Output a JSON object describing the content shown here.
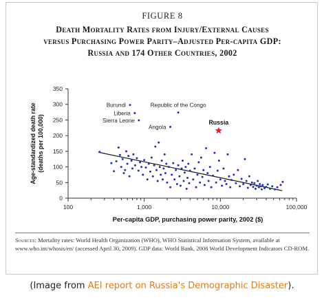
{
  "figure": {
    "label": "Figure 8",
    "title_lines": [
      "Death Mortality Rates from Injury/External Causes",
      "versus Purchasing Power Parity–Adjusted Per-capita GDP:",
      "Russia and 174 Other Countries, 2002"
    ],
    "sources": {
      "label": "Sources:",
      "text": " Mortality rates: World Health Organization (WHO), WHO Statistical Information System, available at www.who.int/whosis/en/ (accessed April 30, 2009). GDP data: World Bank, 2008 World Development Indicators CD-ROM."
    }
  },
  "caption": {
    "before": "(Image from ",
    "link": "AEI report on Russia's Demographic Disaster",
    "after": ")."
  },
  "colors": {
    "points": "#2233aa",
    "russia": "#e02020",
    "trend": "#222222",
    "link": "#e07b1a"
  },
  "chart_data": {
    "type": "scatter",
    "x_scale": "log",
    "xlabel": "Per-capita GDP, purchasing power parity, 2002 ($)",
    "ylabel_lines": [
      "Age-standardized death rate",
      "(deaths per 100,000)"
    ],
    "xlim": [
      100,
      100000
    ],
    "ylim": [
      0,
      350
    ],
    "x_ticks": [
      {
        "value": 100,
        "label": "100"
      },
      {
        "value": 1000,
        "label": "1,000"
      },
      {
        "value": 10000,
        "label": "10,000"
      },
      {
        "value": 100000,
        "label": "100,000"
      }
    ],
    "y_ticks": [
      0,
      50,
      100,
      150,
      200,
      250,
      300,
      350
    ],
    "labeled_points": [
      {
        "name": "Burundi",
        "x": 650,
        "y": 298
      },
      {
        "name": "Liberia",
        "x": 750,
        "y": 272
      },
      {
        "name": "Sierra Leone",
        "x": 850,
        "y": 249
      },
      {
        "name": "Republic of the Congo",
        "x": 2800,
        "y": 274
      },
      {
        "name": "Angola",
        "x": 2200,
        "y": 228
      }
    ],
    "highlight": {
      "name": "Russia",
      "x": 9500,
      "y": 216
    },
    "trendline": [
      [
        250,
        147
      ],
      [
        65000,
        24
      ]
    ],
    "points": [
      [
        260,
        148
      ],
      [
        370,
        112
      ],
      [
        400,
        86
      ],
      [
        430,
        118
      ],
      [
        460,
        162
      ],
      [
        480,
        138
      ],
      [
        500,
        100
      ],
      [
        520,
        125
      ],
      [
        540,
        80
      ],
      [
        560,
        90
      ],
      [
        580,
        150
      ],
      [
        600,
        110
      ],
      [
        620,
        135
      ],
      [
        640,
        70
      ],
      [
        680,
        120
      ],
      [
        700,
        95
      ],
      [
        720,
        140
      ],
      [
        760,
        105
      ],
      [
        800,
        128
      ],
      [
        840,
        88
      ],
      [
        880,
        115
      ],
      [
        920,
        100
      ],
      [
        960,
        75
      ],
      [
        1000,
        122
      ],
      [
        1050,
        98
      ],
      [
        1100,
        60
      ],
      [
        1150,
        110
      ],
      [
        1200,
        85
      ],
      [
        1250,
        130
      ],
      [
        1300,
        70
      ],
      [
        1350,
        105
      ],
      [
        1400,
        165
      ],
      [
        1450,
        90
      ],
      [
        1500,
        55
      ],
      [
        1550,
        178
      ],
      [
        1600,
        100
      ],
      [
        1650,
        75
      ],
      [
        1700,
        120
      ],
      [
        1750,
        60
      ],
      [
        1800,
        95
      ],
      [
        1850,
        140
      ],
      [
        1900,
        80
      ],
      [
        1950,
        110
      ],
      [
        2000,
        50
      ],
      [
        2100,
        100
      ],
      [
        2200,
        35
      ],
      [
        2300,
        75
      ],
      [
        2400,
        112
      ],
      [
        2500,
        60
      ],
      [
        2600,
        90
      ],
      [
        2700,
        45
      ],
      [
        2800,
        105
      ],
      [
        2900,
        70
      ],
      [
        3000,
        40
      ],
      [
        3100,
        95
      ],
      [
        3200,
        120
      ],
      [
        3300,
        55
      ],
      [
        3400,
        82
      ],
      [
        3500,
        100
      ],
      [
        3600,
        30
      ],
      [
        3700,
        65
      ],
      [
        3800,
        110
      ],
      [
        3900,
        48
      ],
      [
        4000,
        88
      ],
      [
        4200,
        140
      ],
      [
        4400,
        60
      ],
      [
        4600,
        95
      ],
      [
        4800,
        35
      ],
      [
        5000,
        75
      ],
      [
        5200,
        115
      ],
      [
        5400,
        50
      ],
      [
        5600,
        130
      ],
      [
        5800,
        68
      ],
      [
        6000,
        90
      ],
      [
        6200,
        42
      ],
      [
        6500,
        160
      ],
      [
        6800,
        80
      ],
      [
        7000,
        55
      ],
      [
        7300,
        100
      ],
      [
        7600,
        35
      ],
      [
        8000,
        72
      ],
      [
        8400,
        145
      ],
      [
        8800,
        50
      ],
      [
        9200,
        88
      ],
      [
        9600,
        120
      ],
      [
        10000,
        60
      ],
      [
        10500,
        40
      ],
      [
        11000,
        95
      ],
      [
        11500,
        55
      ],
      [
        12000,
        45
      ],
      [
        12500,
        140
      ],
      [
        13000,
        70
      ],
      [
        13500,
        35
      ],
      [
        14000,
        58
      ],
      [
        15000,
        75
      ],
      [
        16000,
        48
      ],
      [
        17000,
        90
      ],
      [
        18000,
        38
      ],
      [
        19000,
        62
      ],
      [
        20000,
        45
      ],
      [
        21000,
        125
      ],
      [
        22000,
        55
      ],
      [
        23000,
        33
      ],
      [
        24000,
        70
      ],
      [
        25000,
        42
      ],
      [
        26000,
        50
      ],
      [
        27000,
        36
      ],
      [
        28000,
        48
      ],
      [
        29000,
        30
      ],
      [
        30000,
        40
      ],
      [
        31000,
        55
      ],
      [
        32000,
        35
      ],
      [
        33000,
        45
      ],
      [
        34000,
        38
      ],
      [
        35000,
        28
      ],
      [
        36000,
        42
      ],
      [
        38000,
        32
      ],
      [
        40000,
        36
      ],
      [
        42000,
        44
      ],
      [
        45000,
        30
      ],
      [
        48000,
        38
      ],
      [
        52000,
        28
      ],
      [
        56000,
        35
      ],
      [
        62000,
        42
      ],
      [
        66000,
        52
      ]
    ]
  }
}
